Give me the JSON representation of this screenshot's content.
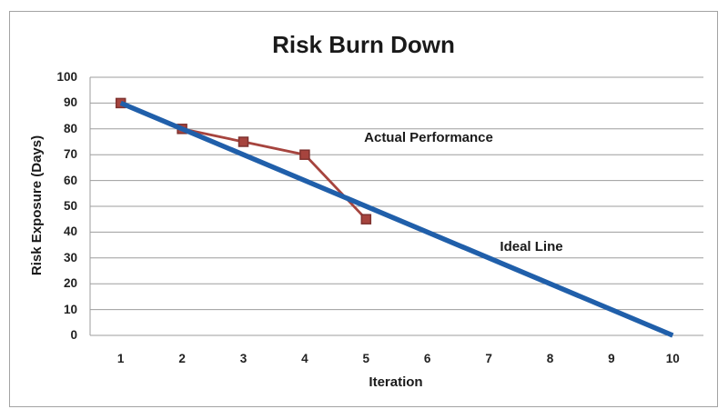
{
  "chart_data": {
    "type": "line",
    "title": "Risk Burn Down",
    "xlabel": "Iteration",
    "ylabel": "Risk Exposure (Days)",
    "categories": [
      1,
      2,
      3,
      4,
      5,
      6,
      7,
      8,
      9,
      10
    ],
    "ylim": [
      0,
      100
    ],
    "ytick_step": 10,
    "grid": "horizontal",
    "legend_position": "none",
    "colors": {
      "grid": "#9d9d9d",
      "axis": "#9d9d9d",
      "ideal_blue": "#205FAA",
      "actual_red": "#A6443E"
    },
    "series": [
      {
        "name": "Actual Performance",
        "x": [
          1,
          2,
          3,
          4,
          5
        ],
        "values": [
          90,
          80,
          75,
          70,
          45
        ],
        "color": "#A6443E",
        "marker": "square",
        "marker_size": 10,
        "marker_border_color": "#7F3330",
        "line_width": 2.8
      },
      {
        "name": "Ideal Line",
        "x": [
          1,
          10
        ],
        "values": [
          90,
          0
        ],
        "color": "#205FAA",
        "marker": "none",
        "line_width": 5.5
      }
    ]
  }
}
